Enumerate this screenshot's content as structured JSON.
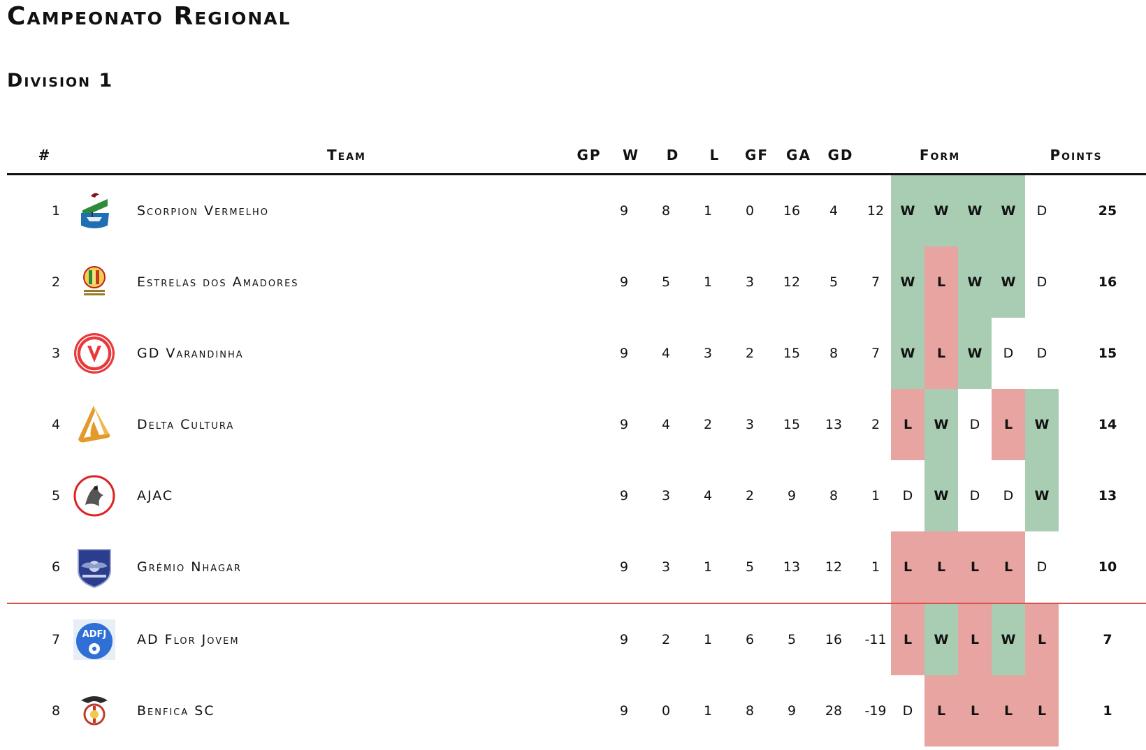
{
  "page": {
    "title": "Campeonato Regional",
    "subtitle": "Division 1"
  },
  "colors": {
    "win": "#a8cdb2",
    "loss": "#e8a4a0",
    "separator": "#d9534f"
  },
  "table": {
    "headers": {
      "pos": "#",
      "team": "Team",
      "gp": "GP",
      "w": "W",
      "d": "D",
      "l": "L",
      "gf": "GF",
      "ga": "GA",
      "gd": "GD",
      "form": "Form",
      "points": "Points"
    },
    "rows": [
      {
        "pos": "1",
        "team": "Scorpion Vermelho",
        "logo": "scorpion-vermelho-crest-icon",
        "gp": "9",
        "w": "8",
        "d": "1",
        "l": "0",
        "gf": "16",
        "ga": "4",
        "gd": "12",
        "form": [
          "W",
          "W",
          "W",
          "W",
          "D"
        ],
        "points": "25"
      },
      {
        "pos": "2",
        "team": "Estrelas dos Amadores",
        "logo": "estrelas-dos-amadores-crest-icon",
        "gp": "9",
        "w": "5",
        "d": "1",
        "l": "3",
        "gf": "12",
        "ga": "5",
        "gd": "7",
        "form": [
          "W",
          "L",
          "W",
          "W",
          "D"
        ],
        "points": "16"
      },
      {
        "pos": "3",
        "team": "GD Varandinha",
        "logo": "gd-varandinha-crest-icon",
        "gp": "9",
        "w": "4",
        "d": "3",
        "l": "2",
        "gf": "15",
        "ga": "8",
        "gd": "7",
        "form": [
          "W",
          "L",
          "W",
          "D",
          "D"
        ],
        "points": "15"
      },
      {
        "pos": "4",
        "team": "Delta Cultura",
        "logo": "delta-cultura-crest-icon",
        "gp": "9",
        "w": "4",
        "d": "2",
        "l": "3",
        "gf": "15",
        "ga": "13",
        "gd": "2",
        "form": [
          "L",
          "W",
          "D",
          "L",
          "W"
        ],
        "points": "14"
      },
      {
        "pos": "5",
        "team": "AJAC",
        "logo": "ajac-crest-icon",
        "gp": "9",
        "w": "3",
        "d": "4",
        "l": "2",
        "gf": "9",
        "ga": "8",
        "gd": "1",
        "form": [
          "D",
          "W",
          "D",
          "D",
          "W"
        ],
        "points": "13"
      },
      {
        "pos": "6",
        "team": "Grémio Nhagar",
        "logo": "gremio-nhagar-crest-icon",
        "gp": "9",
        "w": "3",
        "d": "1",
        "l": "5",
        "gf": "13",
        "ga": "12",
        "gd": "1",
        "form": [
          "L",
          "L",
          "L",
          "L",
          "D"
        ],
        "points": "10"
      },
      {
        "pos": "7",
        "team": "AD Flor Jovem",
        "logo": "ad-flor-jovem-crest-icon",
        "gp": "9",
        "w": "2",
        "d": "1",
        "l": "6",
        "gf": "5",
        "ga": "16",
        "gd": "-11",
        "form": [
          "L",
          "W",
          "L",
          "W",
          "L"
        ],
        "points": "7"
      },
      {
        "pos": "8",
        "team": "Benfica SC",
        "logo": "benfica-sc-crest-icon",
        "gp": "9",
        "w": "0",
        "d": "1",
        "l": "8",
        "gf": "9",
        "ga": "28",
        "gd": "-19",
        "form": [
          "D",
          "L",
          "L",
          "L",
          "L"
        ],
        "points": "1"
      }
    ]
  }
}
